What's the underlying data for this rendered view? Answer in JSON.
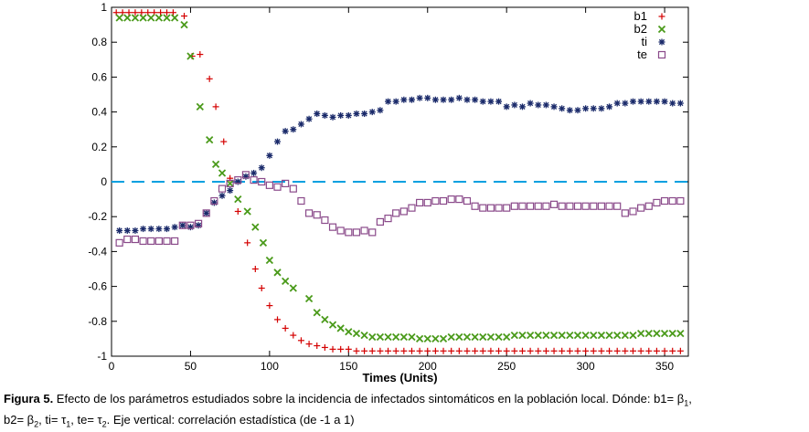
{
  "chart_data": {
    "type": "scatter",
    "xlabel": "Times (Units)",
    "ylabel": "",
    "xlim": [
      0,
      365
    ],
    "ylim": [
      -1,
      1
    ],
    "x_ticks": [
      0,
      50,
      100,
      150,
      200,
      250,
      300,
      350
    ],
    "y_ticks": [
      1,
      0.8,
      0.6,
      0.4,
      0.2,
      0,
      -0.2,
      -0.4,
      -0.6,
      -0.8,
      -1
    ],
    "y_tick_labels": [
      "1",
      "0.8",
      "0.6",
      "0.4",
      "0.2",
      "0",
      "-0.2",
      "-0.4",
      "-0.6",
      "-0.8",
      "-1"
    ],
    "legend_position": "top-right",
    "zero_line": {
      "y": 0,
      "style": "dashed",
      "color": "#00a0e0"
    },
    "series": [
      {
        "name": "b1",
        "marker": "plus",
        "color": "#d40000",
        "points": [
          [
            3,
            0.97
          ],
          [
            7,
            0.97
          ],
          [
            11,
            0.97
          ],
          [
            15,
            0.97
          ],
          [
            19,
            0.97
          ],
          [
            23,
            0.97
          ],
          [
            27,
            0.97
          ],
          [
            31,
            0.97
          ],
          [
            35,
            0.97
          ],
          [
            39,
            0.97
          ],
          [
            46,
            0.95
          ],
          [
            51,
            0.72
          ],
          [
            56,
            0.73
          ],
          [
            62,
            0.59
          ],
          [
            66,
            0.43
          ],
          [
            71,
            0.23
          ],
          [
            75,
            0.02
          ],
          [
            80,
            -0.17
          ],
          [
            86,
            -0.35
          ],
          [
            91,
            -0.5
          ],
          [
            95,
            -0.61
          ],
          [
            100,
            -0.71
          ],
          [
            105,
            -0.79
          ],
          [
            110,
            -0.84
          ],
          [
            115,
            -0.88
          ],
          [
            120,
            -0.91
          ],
          [
            125,
            -0.93
          ],
          [
            130,
            -0.94
          ],
          [
            135,
            -0.95
          ],
          [
            140,
            -0.96
          ],
          [
            145,
            -0.96
          ],
          [
            150,
            -0.96
          ],
          [
            155,
            -0.97
          ],
          [
            160,
            -0.97
          ],
          [
            165,
            -0.97
          ],
          [
            170,
            -0.97
          ],
          [
            175,
            -0.97
          ],
          [
            180,
            -0.97
          ],
          [
            185,
            -0.97
          ],
          [
            190,
            -0.97
          ],
          [
            195,
            -0.97
          ],
          [
            200,
            -0.97
          ],
          [
            205,
            -0.97
          ],
          [
            210,
            -0.97
          ],
          [
            215,
            -0.97
          ],
          [
            220,
            -0.97
          ],
          [
            225,
            -0.97
          ],
          [
            230,
            -0.97
          ],
          [
            235,
            -0.97
          ],
          [
            240,
            -0.97
          ],
          [
            245,
            -0.97
          ],
          [
            250,
            -0.97
          ],
          [
            255,
            -0.97
          ],
          [
            260,
            -0.97
          ],
          [
            265,
            -0.97
          ],
          [
            270,
            -0.97
          ],
          [
            275,
            -0.97
          ],
          [
            280,
            -0.97
          ],
          [
            285,
            -0.97
          ],
          [
            290,
            -0.97
          ],
          [
            295,
            -0.97
          ],
          [
            300,
            -0.97
          ],
          [
            305,
            -0.97
          ],
          [
            310,
            -0.97
          ],
          [
            315,
            -0.97
          ],
          [
            320,
            -0.97
          ],
          [
            325,
            -0.97
          ],
          [
            330,
            -0.97
          ],
          [
            335,
            -0.97
          ],
          [
            340,
            -0.97
          ],
          [
            345,
            -0.97
          ],
          [
            350,
            -0.97
          ],
          [
            355,
            -0.97
          ],
          [
            360,
            -0.97
          ]
        ]
      },
      {
        "name": "b2",
        "marker": "cross",
        "color": "#4a9a1a",
        "points": [
          [
            5,
            0.94
          ],
          [
            10,
            0.94
          ],
          [
            15,
            0.94
          ],
          [
            20,
            0.94
          ],
          [
            25,
            0.94
          ],
          [
            30,
            0.94
          ],
          [
            35,
            0.94
          ],
          [
            40,
            0.94
          ],
          [
            46,
            0.9
          ],
          [
            50,
            0.72
          ],
          [
            56,
            0.43
          ],
          [
            62,
            0.24
          ],
          [
            66,
            0.1
          ],
          [
            70,
            0.05
          ],
          [
            75,
            -0.01
          ],
          [
            80,
            -0.1
          ],
          [
            86,
            -0.17
          ],
          [
            91,
            -0.26
          ],
          [
            96,
            -0.35
          ],
          [
            100,
            -0.45
          ],
          [
            105,
            -0.52
          ],
          [
            110,
            -0.57
          ],
          [
            115,
            -0.61
          ],
          [
            125,
            -0.67
          ],
          [
            130,
            -0.75
          ],
          [
            135,
            -0.79
          ],
          [
            140,
            -0.82
          ],
          [
            145,
            -0.84
          ],
          [
            150,
            -0.86
          ],
          [
            155,
            -0.87
          ],
          [
            160,
            -0.88
          ],
          [
            165,
            -0.89
          ],
          [
            170,
            -0.89
          ],
          [
            175,
            -0.89
          ],
          [
            180,
            -0.89
          ],
          [
            185,
            -0.89
          ],
          [
            190,
            -0.89
          ],
          [
            195,
            -0.9
          ],
          [
            200,
            -0.9
          ],
          [
            205,
            -0.9
          ],
          [
            210,
            -0.9
          ],
          [
            215,
            -0.89
          ],
          [
            220,
            -0.89
          ],
          [
            225,
            -0.89
          ],
          [
            230,
            -0.89
          ],
          [
            235,
            -0.89
          ],
          [
            240,
            -0.89
          ],
          [
            245,
            -0.89
          ],
          [
            250,
            -0.89
          ],
          [
            255,
            -0.88
          ],
          [
            260,
            -0.88
          ],
          [
            265,
            -0.88
          ],
          [
            270,
            -0.88
          ],
          [
            275,
            -0.88
          ],
          [
            280,
            -0.88
          ],
          [
            285,
            -0.88
          ],
          [
            290,
            -0.88
          ],
          [
            295,
            -0.88
          ],
          [
            300,
            -0.88
          ],
          [
            305,
            -0.88
          ],
          [
            310,
            -0.88
          ],
          [
            315,
            -0.88
          ],
          [
            320,
            -0.88
          ],
          [
            325,
            -0.88
          ],
          [
            330,
            -0.88
          ],
          [
            335,
            -0.87
          ],
          [
            340,
            -0.87
          ],
          [
            345,
            -0.87
          ],
          [
            350,
            -0.87
          ],
          [
            355,
            -0.87
          ],
          [
            360,
            -0.87
          ]
        ]
      },
      {
        "name": "ti",
        "marker": "star",
        "color": "#1a2a6a",
        "points": [
          [
            5,
            -0.28
          ],
          [
            10,
            -0.28
          ],
          [
            15,
            -0.28
          ],
          [
            20,
            -0.27
          ],
          [
            25,
            -0.27
          ],
          [
            30,
            -0.27
          ],
          [
            35,
            -0.27
          ],
          [
            40,
            -0.26
          ],
          [
            45,
            -0.25
          ],
          [
            50,
            -0.26
          ],
          [
            55,
            -0.25
          ],
          [
            60,
            -0.18
          ],
          [
            65,
            -0.12
          ],
          [
            70,
            -0.08
          ],
          [
            75,
            -0.05
          ],
          [
            80,
            0
          ],
          [
            85,
            0.03
          ],
          [
            90,
            0.05
          ],
          [
            95,
            0.08
          ],
          [
            100,
            0.15
          ],
          [
            105,
            0.23
          ],
          [
            110,
            0.29
          ],
          [
            115,
            0.3
          ],
          [
            120,
            0.33
          ],
          [
            125,
            0.36
          ],
          [
            130,
            0.39
          ],
          [
            135,
            0.38
          ],
          [
            140,
            0.37
          ],
          [
            145,
            0.38
          ],
          [
            150,
            0.38
          ],
          [
            155,
            0.39
          ],
          [
            160,
            0.39
          ],
          [
            165,
            0.4
          ],
          [
            170,
            0.41
          ],
          [
            175,
            0.46
          ],
          [
            180,
            0.46
          ],
          [
            185,
            0.47
          ],
          [
            190,
            0.47
          ],
          [
            195,
            0.48
          ],
          [
            200,
            0.48
          ],
          [
            205,
            0.47
          ],
          [
            210,
            0.47
          ],
          [
            215,
            0.47
          ],
          [
            220,
            0.48
          ],
          [
            225,
            0.47
          ],
          [
            230,
            0.47
          ],
          [
            235,
            0.46
          ],
          [
            240,
            0.46
          ],
          [
            245,
            0.46
          ],
          [
            250,
            0.43
          ],
          [
            255,
            0.44
          ],
          [
            260,
            0.43
          ],
          [
            265,
            0.45
          ],
          [
            270,
            0.44
          ],
          [
            275,
            0.44
          ],
          [
            280,
            0.43
          ],
          [
            285,
            0.42
          ],
          [
            290,
            0.41
          ],
          [
            295,
            0.41
          ],
          [
            300,
            0.42
          ],
          [
            305,
            0.42
          ],
          [
            310,
            0.42
          ],
          [
            315,
            0.43
          ],
          [
            320,
            0.45
          ],
          [
            325,
            0.45
          ],
          [
            330,
            0.46
          ],
          [
            335,
            0.46
          ],
          [
            340,
            0.46
          ],
          [
            345,
            0.46
          ],
          [
            350,
            0.46
          ],
          [
            355,
            0.45
          ],
          [
            360,
            0.45
          ]
        ]
      },
      {
        "name": "te",
        "marker": "square",
        "color": "#8a4a8a",
        "points": [
          [
            5,
            -0.35
          ],
          [
            10,
            -0.33
          ],
          [
            15,
            -0.33
          ],
          [
            20,
            -0.34
          ],
          [
            25,
            -0.34
          ],
          [
            30,
            -0.34
          ],
          [
            35,
            -0.34
          ],
          [
            40,
            -0.34
          ],
          [
            45,
            -0.25
          ],
          [
            50,
            -0.25
          ],
          [
            55,
            -0.24
          ],
          [
            60,
            -0.18
          ],
          [
            65,
            -0.11
          ],
          [
            70,
            -0.04
          ],
          [
            75,
            -0.01
          ],
          [
            80,
            0.01
          ],
          [
            85,
            0.04
          ],
          [
            90,
            0.01
          ],
          [
            95,
            0.0
          ],
          [
            100,
            -0.02
          ],
          [
            105,
            -0.03
          ],
          [
            110,
            -0.01
          ],
          [
            115,
            -0.04
          ],
          [
            120,
            -0.11
          ],
          [
            125,
            -0.18
          ],
          [
            130,
            -0.19
          ],
          [
            135,
            -0.22
          ],
          [
            140,
            -0.26
          ],
          [
            145,
            -0.28
          ],
          [
            150,
            -0.29
          ],
          [
            155,
            -0.29
          ],
          [
            160,
            -0.28
          ],
          [
            165,
            -0.29
          ],
          [
            170,
            -0.23
          ],
          [
            175,
            -0.21
          ],
          [
            180,
            -0.18
          ],
          [
            185,
            -0.17
          ],
          [
            190,
            -0.15
          ],
          [
            195,
            -0.12
          ],
          [
            200,
            -0.12
          ],
          [
            205,
            -0.11
          ],
          [
            210,
            -0.11
          ],
          [
            215,
            -0.1
          ],
          [
            220,
            -0.1
          ],
          [
            225,
            -0.11
          ],
          [
            230,
            -0.14
          ],
          [
            235,
            -0.15
          ],
          [
            240,
            -0.15
          ],
          [
            245,
            -0.15
          ],
          [
            250,
            -0.15
          ],
          [
            255,
            -0.14
          ],
          [
            260,
            -0.14
          ],
          [
            265,
            -0.14
          ],
          [
            270,
            -0.14
          ],
          [
            275,
            -0.14
          ],
          [
            280,
            -0.13
          ],
          [
            285,
            -0.14
          ],
          [
            290,
            -0.14
          ],
          [
            295,
            -0.14
          ],
          [
            300,
            -0.14
          ],
          [
            305,
            -0.14
          ],
          [
            310,
            -0.14
          ],
          [
            315,
            -0.14
          ],
          [
            320,
            -0.14
          ],
          [
            325,
            -0.18
          ],
          [
            330,
            -0.17
          ],
          [
            335,
            -0.15
          ],
          [
            340,
            -0.14
          ],
          [
            345,
            -0.12
          ],
          [
            350,
            -0.11
          ],
          [
            355,
            -0.11
          ],
          [
            360,
            -0.11
          ]
        ]
      }
    ]
  },
  "caption": {
    "label": "Figura 5.",
    "line1": " Efecto de los parámetros estudiados sobre la incidencia de infectados sintomáticos en la población local. Dónde: b1= β",
    "sub1": "1",
    "line1_end": ",",
    "b2_text": "b2= β",
    "sub2": "2",
    "ti_text": ", ti= τ",
    "sub3": "1",
    "te_text": ", te= τ",
    "sub4": "2",
    "rest": ". Eje vertical: correlación estadística (de -1 a 1)"
  }
}
